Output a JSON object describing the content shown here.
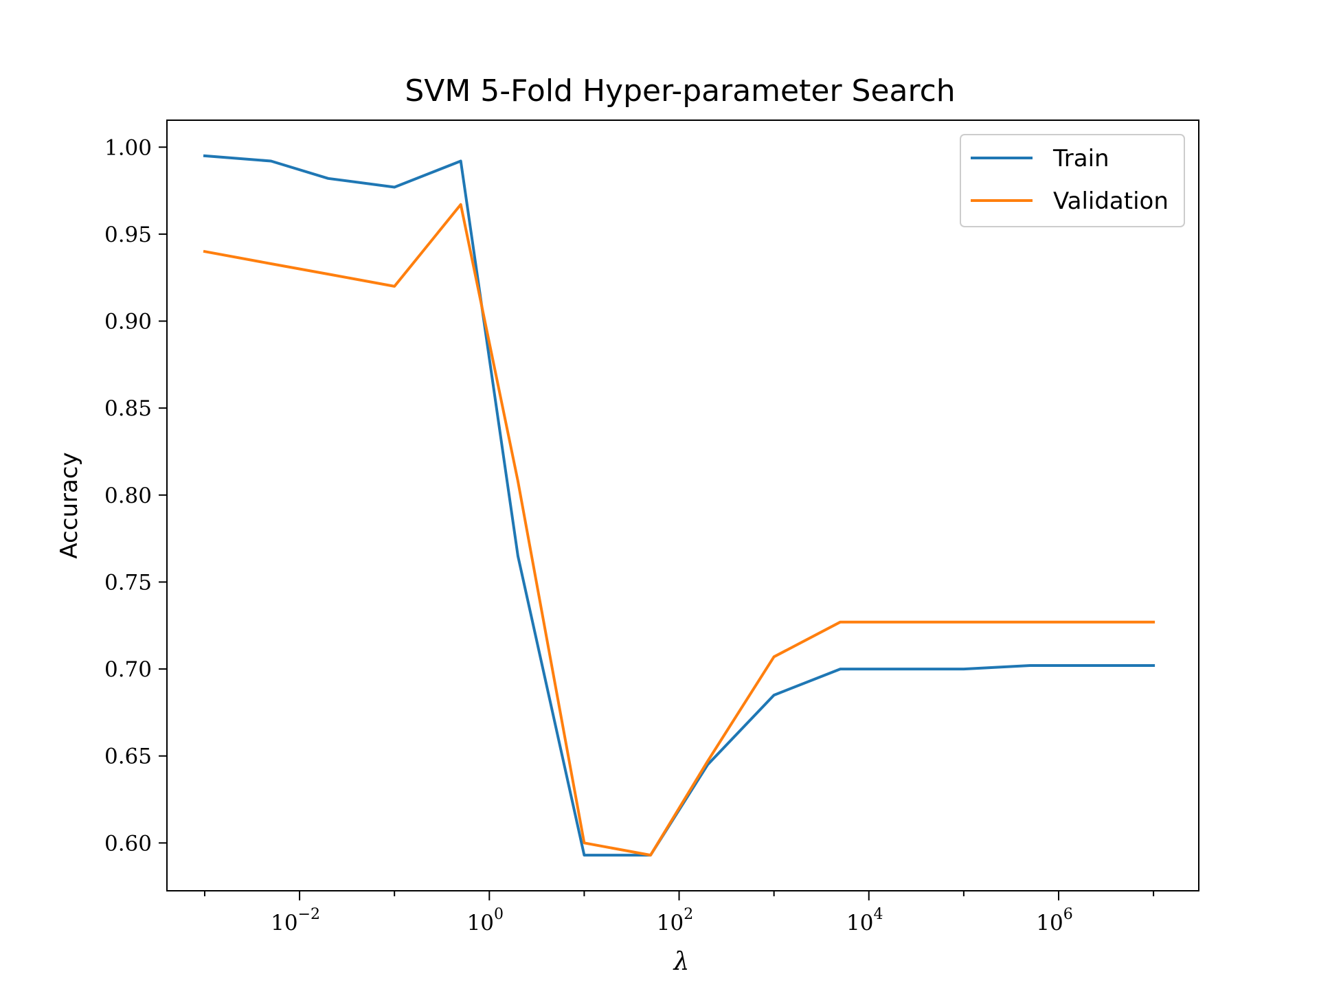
{
  "chart_data": {
    "type": "line",
    "title": "SVM 5-Fold Hyper-parameter Search",
    "xlabel": "λ",
    "ylabel": "Accuracy",
    "xscale": "log",
    "xlim": [
      0.0004,
      30000000
    ],
    "ylim": [
      0.5725,
      1.0155
    ],
    "x_ticks": [
      {
        "base": "10",
        "exp": "−2",
        "value": 0.01
      },
      {
        "base": "10",
        "exp": "0",
        "value": 1
      },
      {
        "base": "10",
        "exp": "2",
        "value": 100
      },
      {
        "base": "10",
        "exp": "4",
        "value": 10000
      },
      {
        "base": "10",
        "exp": "6",
        "value": 1000000
      }
    ],
    "y_ticks": [
      "0.60",
      "0.65",
      "0.70",
      "0.75",
      "0.80",
      "0.85",
      "0.90",
      "0.95",
      "1.00"
    ],
    "legend_position": "top-right",
    "x": [
      0.001,
      0.005,
      0.02,
      0.1,
      0.5,
      2,
      10,
      50,
      200,
      1000,
      5000,
      100000,
      500000,
      10000000
    ],
    "series": [
      {
        "name": "Train",
        "color": "#1f77b4",
        "values": [
          0.995,
          0.992,
          0.982,
          0.977,
          0.992,
          0.765,
          0.593,
          0.593,
          0.645,
          0.685,
          0.7,
          0.7,
          0.702,
          0.702
        ]
      },
      {
        "name": "Validation",
        "color": "#ff7f0e",
        "values": [
          0.94,
          0.933,
          0.927,
          0.92,
          0.967,
          0.808,
          0.6,
          0.593,
          0.647,
          0.707,
          0.727,
          0.727,
          0.727,
          0.727
        ]
      }
    ],
    "grid": false
  }
}
